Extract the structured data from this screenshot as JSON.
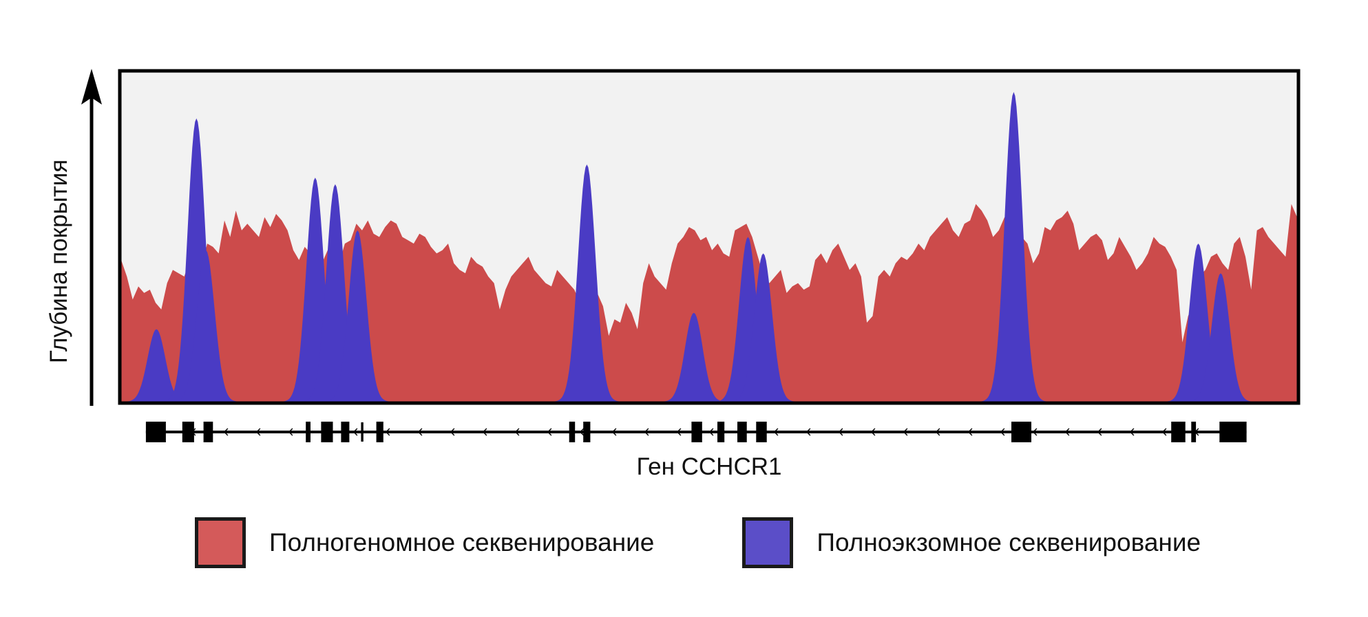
{
  "chart_data": {
    "type": "area",
    "ylabel": "Глубина покрытия",
    "xlabel": "Ген CCHCR1",
    "grid": false,
    "legend_position": "bottom",
    "series": [
      {
        "name": "Полногеномное секвенирование",
        "color": "#cc4b4b",
        "values": [
          0.43,
          0.38,
          0.31,
          0.35,
          0.33,
          0.34,
          0.3,
          0.28,
          0.36,
          0.4,
          0.39,
          0.38,
          0.43,
          0.45,
          0.41,
          0.48,
          0.47,
          0.45,
          0.55,
          0.5,
          0.58,
          0.52,
          0.54,
          0.52,
          0.5,
          0.56,
          0.53,
          0.57,
          0.55,
          0.52,
          0.46,
          0.43,
          0.47,
          0.45,
          0.44,
          0.42,
          0.46,
          0.44,
          0.42,
          0.48,
          0.49,
          0.54,
          0.52,
          0.55,
          0.51,
          0.5,
          0.53,
          0.55,
          0.54,
          0.5,
          0.49,
          0.48,
          0.51,
          0.5,
          0.47,
          0.45,
          0.46,
          0.48,
          0.42,
          0.4,
          0.39,
          0.44,
          0.42,
          0.41,
          0.38,
          0.36,
          0.28,
          0.34,
          0.38,
          0.4,
          0.42,
          0.44,
          0.4,
          0.38,
          0.36,
          0.35,
          0.4,
          0.38,
          0.36,
          0.34,
          0.3,
          0.32,
          0.38,
          0.33,
          0.29,
          0.2,
          0.25,
          0.24,
          0.3,
          0.27,
          0.22,
          0.36,
          0.42,
          0.38,
          0.36,
          0.34,
          0.42,
          0.48,
          0.5,
          0.53,
          0.52,
          0.49,
          0.5,
          0.46,
          0.48,
          0.45,
          0.44,
          0.52,
          0.53,
          0.54,
          0.5,
          0.44,
          0.38,
          0.36,
          0.38,
          0.4,
          0.33,
          0.35,
          0.36,
          0.34,
          0.35,
          0.43,
          0.45,
          0.42,
          0.46,
          0.48,
          0.44,
          0.4,
          0.42,
          0.38,
          0.24,
          0.26,
          0.38,
          0.4,
          0.38,
          0.42,
          0.44,
          0.43,
          0.45,
          0.48,
          0.46,
          0.5,
          0.52,
          0.54,
          0.56,
          0.52,
          0.5,
          0.54,
          0.55,
          0.6,
          0.58,
          0.55,
          0.5,
          0.52,
          0.56,
          0.55,
          0.53,
          0.5,
          0.48,
          0.42,
          0.45,
          0.53,
          0.52,
          0.55,
          0.56,
          0.58,
          0.54,
          0.46,
          0.48,
          0.5,
          0.51,
          0.49,
          0.43,
          0.45,
          0.5,
          0.47,
          0.44,
          0.4,
          0.42,
          0.45,
          0.5,
          0.48,
          0.47,
          0.44,
          0.4,
          0.18,
          0.26,
          0.3,
          0.38,
          0.4,
          0.44,
          0.45,
          0.42,
          0.4,
          0.48,
          0.5,
          0.44,
          0.34,
          0.52,
          0.53,
          0.5,
          0.48,
          0.46,
          0.44,
          0.6,
          0.56
        ],
        "x_range": [
          0,
          1
        ]
      },
      {
        "name": "Полноэкзомное секвенирование",
        "color": "#4a3bc4",
        "peaks": [
          {
            "center": 0.03,
            "height": 0.22
          },
          {
            "center": 0.064,
            "height": 0.86
          },
          {
            "center": 0.072,
            "height": 0.46
          },
          {
            "center": 0.165,
            "height": 0.68
          },
          {
            "center": 0.182,
            "height": 0.66
          },
          {
            "center": 0.201,
            "height": 0.52
          },
          {
            "center": 0.396,
            "height": 0.72
          },
          {
            "center": 0.487,
            "height": 0.27
          },
          {
            "center": 0.533,
            "height": 0.5
          },
          {
            "center": 0.546,
            "height": 0.45
          },
          {
            "center": 0.759,
            "height": 0.94
          },
          {
            "center": 0.916,
            "height": 0.48
          },
          {
            "center": 0.935,
            "height": 0.39
          }
        ]
      }
    ],
    "gene": {
      "exons": [
        {
          "start": 0.021,
          "end": 0.038,
          "thick": true
        },
        {
          "start": 0.052,
          "end": 0.062,
          "thick": true
        },
        {
          "start": 0.07,
          "end": 0.078,
          "thick": true
        },
        {
          "start": 0.157,
          "end": 0.161,
          "thick": true
        },
        {
          "start": 0.17,
          "end": 0.18,
          "thick": true
        },
        {
          "start": 0.187,
          "end": 0.194,
          "thick": true
        },
        {
          "start": 0.204,
          "end": 0.206,
          "thick": false
        },
        {
          "start": 0.217,
          "end": 0.223,
          "thick": true
        },
        {
          "start": 0.381,
          "end": 0.386,
          "thick": true
        },
        {
          "start": 0.393,
          "end": 0.399,
          "thick": true
        },
        {
          "start": 0.485,
          "end": 0.494,
          "thick": true
        },
        {
          "start": 0.507,
          "end": 0.513,
          "thick": true
        },
        {
          "start": 0.524,
          "end": 0.532,
          "thick": true
        },
        {
          "start": 0.54,
          "end": 0.549,
          "thick": true
        },
        {
          "start": 0.757,
          "end": 0.774,
          "thick": true
        },
        {
          "start": 0.893,
          "end": 0.905,
          "thick": true
        },
        {
          "start": 0.91,
          "end": 0.914,
          "thick": true
        },
        {
          "start": 0.934,
          "end": 0.957,
          "thick": true
        }
      ],
      "direction": "left"
    }
  },
  "legend": {
    "wgs_label": "Полногеномное секвенирование",
    "wgs_color": "#d45a5a",
    "wes_label": "Полноэкзомное секвенирование",
    "wes_color": "#5b4ec8"
  }
}
